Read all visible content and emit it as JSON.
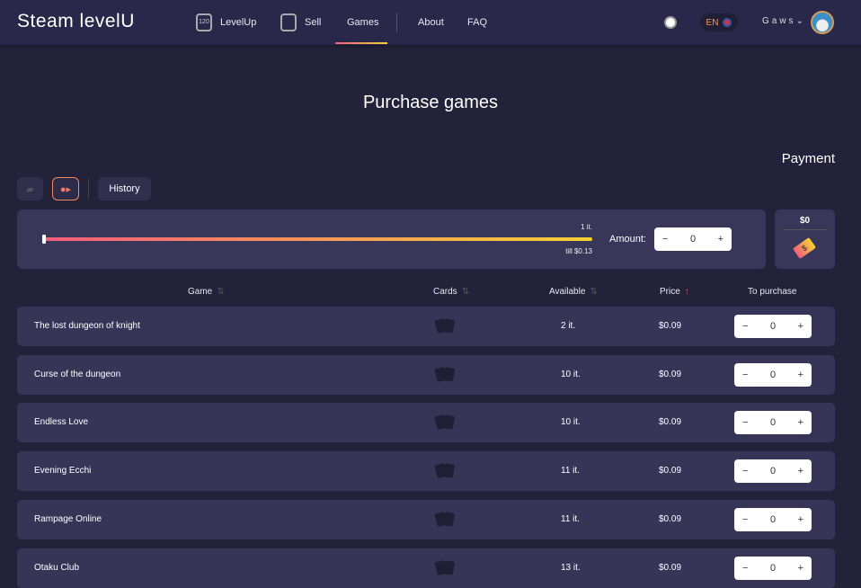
{
  "header": {
    "logo": "Steam levelU",
    "nav": [
      {
        "label": "LevelUp",
        "icon": "level-badge-icon",
        "badge": "120"
      },
      {
        "label": "Sell",
        "icon": "cards-icon"
      },
      {
        "label": "Games",
        "active": true
      },
      {
        "label": "About"
      },
      {
        "label": "FAQ"
      }
    ],
    "lang": "EN",
    "user": "Gaws"
  },
  "page": {
    "title": "Purchase games",
    "payment_label": "Payment"
  },
  "toolbar": {
    "history": "History"
  },
  "amount_panel": {
    "top_label": "1 it.",
    "bottom_label": "till $0.13",
    "amount_label": "Amount:",
    "amount_value": "0",
    "slider_value": 0
  },
  "payment": {
    "total": "$0"
  },
  "table": {
    "columns": [
      "Game",
      "Cards",
      "Available",
      "Price",
      "To purchase"
    ],
    "rows": [
      {
        "game": "The lost dungeon of knight",
        "available": "2 it.",
        "price": "$0.09",
        "qty": "0"
      },
      {
        "game": "Curse of the dungeon",
        "available": "10 it.",
        "price": "$0.09",
        "qty": "0"
      },
      {
        "game": "Endless Love",
        "available": "10 it.",
        "price": "$0.09",
        "qty": "0"
      },
      {
        "game": "Evening Ecchi",
        "available": "11 it.",
        "price": "$0.09",
        "qty": "0"
      },
      {
        "game": "Rampage Online",
        "available": "11 it.",
        "price": "$0.09",
        "qty": "0"
      },
      {
        "game": "Otaku Club",
        "available": "13 it.",
        "price": "$0.09",
        "qty": "0"
      }
    ]
  },
  "colors": {
    "accent_start": "#f45c7c",
    "accent_end": "#f7d133",
    "background": "#23223a",
    "card": "#363558"
  }
}
